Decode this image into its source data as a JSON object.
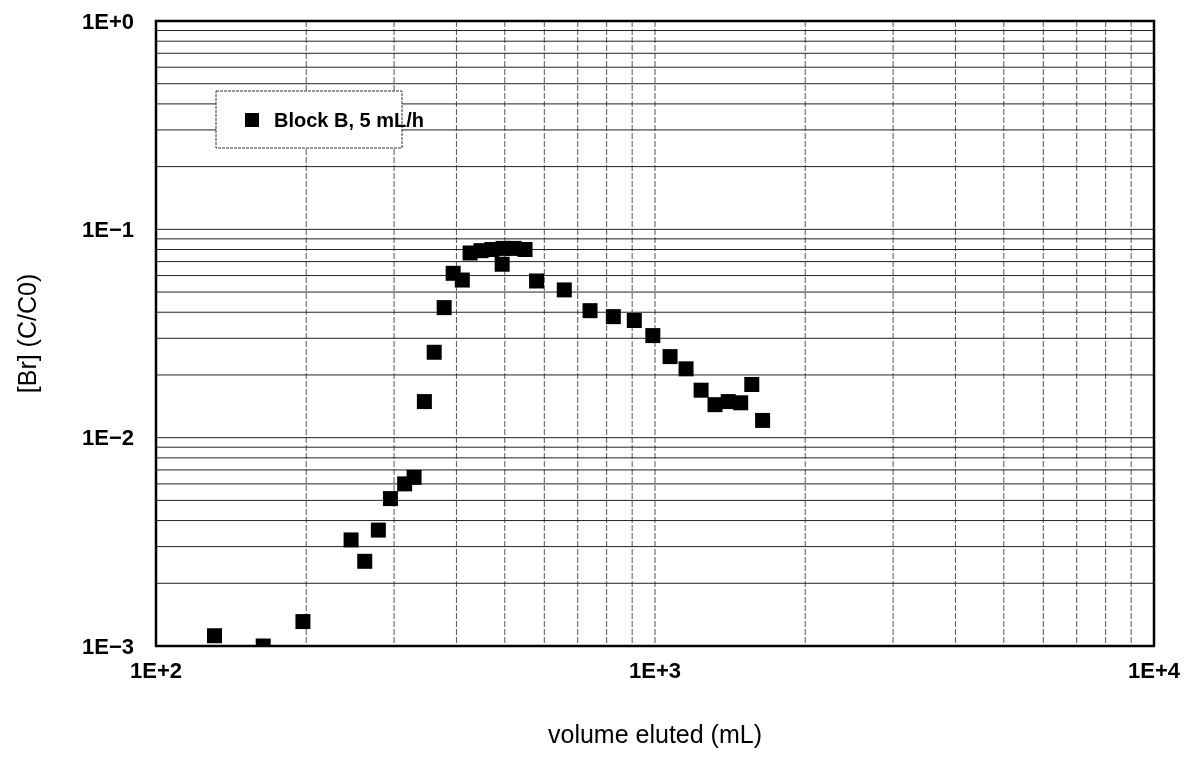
{
  "chart_data": {
    "type": "scatter",
    "xlabel": "volume eluted (mL)",
    "ylabel": "[Br] (C/C0)",
    "log": "xy",
    "grid": true,
    "legend": "top left",
    "marker": "square",
    "xlim": [
      100,
      10000
    ],
    "xticks": [
      {
        "value": 100,
        "label": "1E+2"
      },
      {
        "value": 1000,
        "label": "1E+3"
      },
      {
        "value": 10000,
        "label": "1E+4"
      }
    ],
    "ylim": [
      0.001,
      1
    ],
    "yticks": [
      {
        "value": 0.001,
        "label": "1E−3"
      },
      {
        "value": 0.01,
        "label": "1E−2"
      },
      {
        "value": 0.1,
        "label": "1E−1"
      },
      {
        "value": 1,
        "label": "1E+0"
      }
    ],
    "series": [
      {
        "name": "Block B, 5 mL/h",
        "color": "#000000",
        "x": [
          131,
          164,
          197,
          246,
          262,
          279,
          295,
          315,
          329,
          345,
          361,
          378,
          394,
          411,
          426,
          448,
          471,
          494,
          496,
          522,
          549,
          579,
          658,
          741,
          825,
          909,
          990,
          1072,
          1154,
          1237,
          1319,
          1402,
          1485,
          1563,
          1643
        ],
        "values": [
          0.00112,
          0.001,
          0.00131,
          0.00323,
          0.00255,
          0.0036,
          0.0051,
          0.006,
          0.00645,
          0.0149,
          0.0257,
          0.0421,
          0.0615,
          0.0571,
          0.077,
          0.079,
          0.08,
          0.068,
          0.081,
          0.081,
          0.08,
          0.0565,
          0.0512,
          0.0407,
          0.0381,
          0.0365,
          0.0309,
          0.0245,
          0.0214,
          0.0169,
          0.0144,
          0.0149,
          0.0147,
          0.018,
          0.0121
        ]
      }
    ]
  }
}
